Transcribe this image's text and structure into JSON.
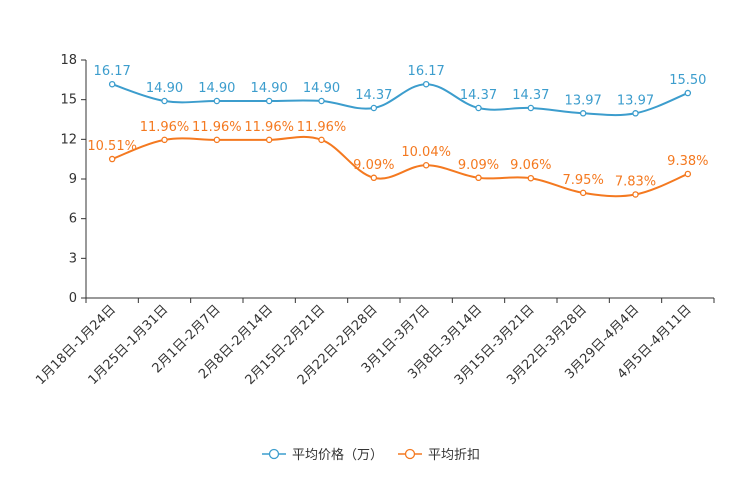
{
  "chart_data": {
    "type": "line",
    "title": "",
    "xlabel": "",
    "ylabel": "",
    "ylim": [
      0,
      18
    ],
    "yticks": [
      "0",
      "3",
      "6",
      "9",
      "12",
      "15",
      "18"
    ],
    "ytick_values": [
      0,
      3,
      6,
      9,
      12,
      15,
      18
    ],
    "grid": false,
    "legend_position": "bottom-center",
    "categories": [
      "1月18日-1月24日",
      "1月25日-1月31日",
      "2月1日-2月7日",
      "2月8日-2月14日",
      "2月15日-2月21日",
      "2月22日-2月28日",
      "3月1日-3月7日",
      "3月8日-3月14日",
      "3月15日-3月21日",
      "3月22日-3月28日",
      "3月29日-4月4日",
      "4月5日-4月11日"
    ],
    "series": [
      {
        "name": "平均价格（万）",
        "color": "#3c9dcd",
        "values": [
          16.17,
          14.9,
          14.9,
          14.9,
          14.9,
          14.37,
          16.17,
          14.37,
          14.37,
          13.97,
          13.97,
          15.5
        ],
        "labels": [
          "16.17",
          "14.90",
          "14.90",
          "14.90",
          "14.90",
          "14.37",
          "16.17",
          "14.37",
          "14.37",
          "13.97",
          "13.97",
          "15.50"
        ]
      },
      {
        "name": "平均折扣",
        "color": "#f47920",
        "values": [
          10.51,
          11.96,
          11.96,
          11.96,
          11.96,
          9.09,
          10.04,
          9.09,
          9.06,
          7.95,
          7.83,
          9.38
        ],
        "labels": [
          "10.51%",
          "11.96%",
          "11.96%",
          "11.96%",
          "11.96%",
          "9.09%",
          "10.04%",
          "9.09%",
          "9.06%",
          "7.95%",
          "7.83%",
          "9.38%"
        ]
      }
    ]
  }
}
